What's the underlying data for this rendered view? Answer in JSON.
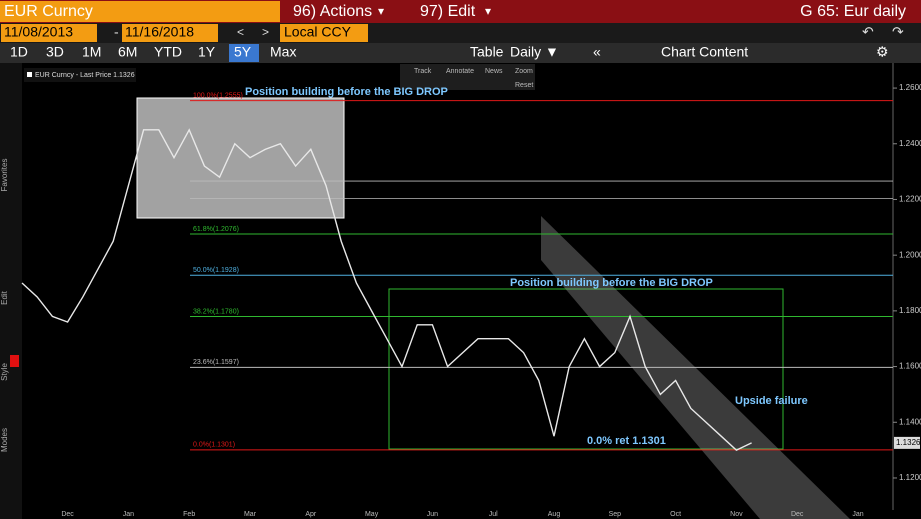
{
  "header": {
    "ticker": "EUR Curncy",
    "actions": "96) Actions",
    "edit": "97) Edit",
    "chart_name": "G 65: Eur daily",
    "start_date": "11/08/2013",
    "end_date": "11/16/2018",
    "currency": "Local CCY"
  },
  "toolbar": {
    "periods": [
      "1D",
      "3D",
      "1M",
      "6M",
      "YTD",
      "1Y",
      "5Y",
      "Max"
    ],
    "active_period": "5Y",
    "frequency": "Daily ▼",
    "table": "Table",
    "chart_content": "Chart Content"
  },
  "chart_tools": [
    "Track",
    "Annotate",
    "News",
    "Zoom",
    "Reset"
  ],
  "side_labels": [
    "Favorites",
    "Edit",
    "Style",
    "Modes"
  ],
  "chart_data": {
    "type": "line",
    "legend": "EUR Curncy - Last Price 1.1326",
    "categories": [
      null,
      null,
      null,
      "Dec",
      null,
      null,
      null,
      "Jan",
      null,
      null,
      null,
      "Feb",
      null,
      null,
      null,
      "Mar",
      null,
      null,
      null,
      "Apr",
      null,
      null,
      null,
      "May",
      null,
      null,
      null,
      "Jun",
      null,
      null,
      null,
      "Jul",
      null,
      null,
      null,
      "Aug",
      null,
      null,
      null,
      "Sep",
      null,
      null,
      null,
      "Oct",
      null,
      null,
      null,
      "Nov",
      null,
      null,
      null,
      "Dec",
      null,
      null,
      null,
      "Jan"
    ],
    "series": [
      {
        "name": "EUR Curncy",
        "color": "#e8e8e8",
        "values": [
          1.19,
          1.185,
          1.178,
          1.176,
          1.185,
          1.195,
          1.205,
          1.225,
          1.245,
          1.245,
          1.235,
          1.245,
          1.232,
          1.228,
          1.24,
          1.235,
          1.238,
          1.24,
          1.232,
          1.238,
          1.225,
          1.205,
          1.19,
          1.18,
          1.17,
          1.16,
          1.175,
          1.175,
          1.16,
          1.165,
          1.17,
          1.17,
          1.17,
          1.165,
          1.155,
          1.135,
          1.16,
          1.17,
          1.16,
          1.165,
          1.178,
          1.16,
          1.15,
          1.155,
          1.145,
          1.14,
          1.135,
          1.13,
          1.1326,
          null,
          null,
          null,
          null,
          null,
          null,
          null
        ]
      }
    ],
    "last_price": 1.1326,
    "ylim": [
      1.1085,
      1.269
    ],
    "yticks": [
      {
        "value": 1.12,
        "label": "1.1200"
      },
      {
        "value": 1.14,
        "label": "1.1400"
      },
      {
        "value": 1.16,
        "label": "1.1600"
      },
      {
        "value": 1.18,
        "label": "1.1800"
      },
      {
        "value": 1.2,
        "label": "1.2000"
      },
      {
        "value": 1.22,
        "label": "1.2200"
      },
      {
        "value": 1.24,
        "label": "1.2400"
      },
      {
        "value": 1.26,
        "label": "1.2600"
      }
    ],
    "fib_levels": [
      {
        "label": "100.0%(1.2555)",
        "value": 1.2555,
        "color": "#e01818"
      },
      {
        "label": "61.8%(1.2076)",
        "value": 1.2076,
        "color": "#2fb82f"
      },
      {
        "label": "50.0%(1.1928)",
        "value": 1.1928,
        "color": "#4fb0e0"
      },
      {
        "label": "38.2%(1.1780)",
        "value": 1.178,
        "color": "#2fb82f"
      },
      {
        "label": "23.6%(1.1597)",
        "value": 1.1597,
        "color": "#bbbbbb"
      },
      {
        "label": "0.0%(1.1301)",
        "value": 1.1301,
        "color": "#e01818"
      }
    ],
    "horizontal_lines": [
      1.2266,
      1.2204
    ],
    "annotations": [
      "Position building before the BIG DROP",
      "Position building before the BIG DROP",
      "Upside failure",
      "0.0% ret 1.1301"
    ]
  }
}
